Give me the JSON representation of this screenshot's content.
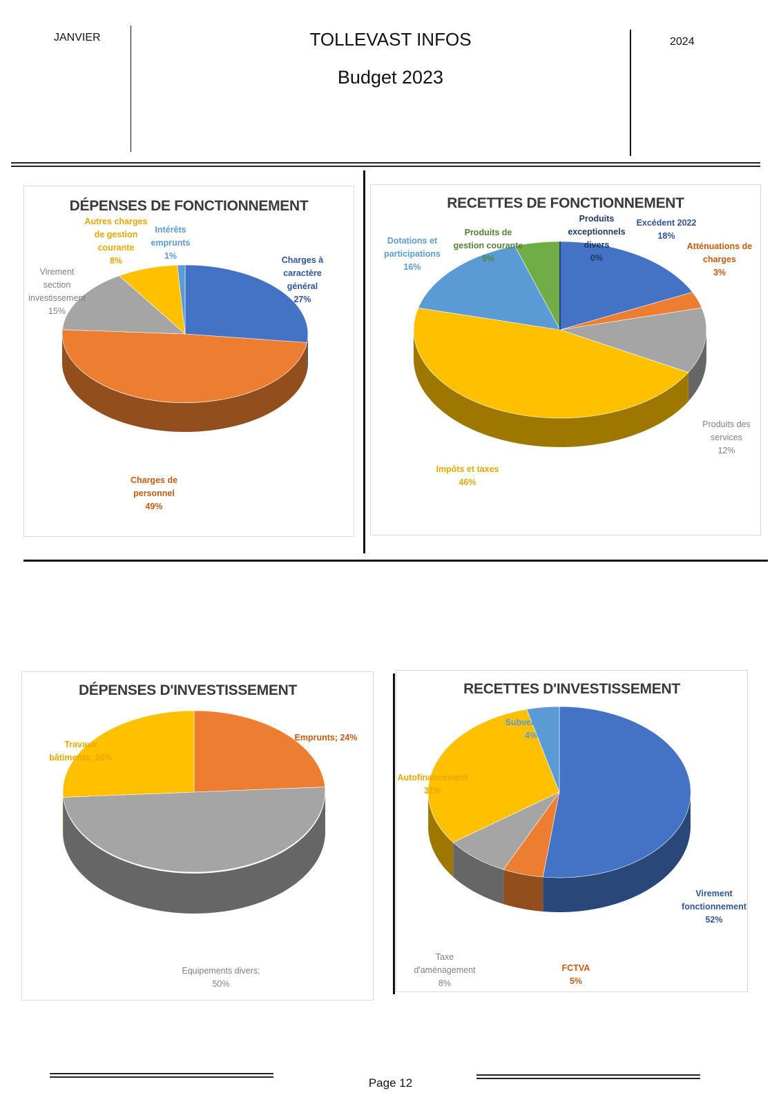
{
  "header": {
    "left": "JANVIER",
    "title": "TOLLEVAST INFOS",
    "subtitle": "Budget 2023",
    "right": "2024"
  },
  "footer": {
    "page": "Page 12"
  },
  "colors": {
    "blue": "#4472c4",
    "orange": "#ed7d31",
    "gray": "#a5a5a5",
    "yellow": "#ffc000",
    "lightblue": "#5b9bd5",
    "green": "#70ad47"
  },
  "chart_data": [
    {
      "type": "pie",
      "title": "DÉPENSES DE FONCTIONNEMENT",
      "slices": [
        {
          "name": "Charges à caractère général",
          "value": 27,
          "label": "27%",
          "color": "#4472c4"
        },
        {
          "name": "Charges de personnel",
          "value": 49,
          "label": "49%",
          "color": "#ed7d31"
        },
        {
          "name": "Virement section investissement",
          "value": 15,
          "label": "15%",
          "color": "#a5a5a5"
        },
        {
          "name": "Autres charges de gestion courante",
          "value": 8,
          "label": "8%",
          "color": "#ffc000"
        },
        {
          "name": "Intérêts emprunts",
          "value": 1,
          "label": "1%",
          "color": "#5b9bd5"
        }
      ]
    },
    {
      "type": "pie",
      "title": "RECETTES DE FONCTIONNEMENT",
      "slices": [
        {
          "name": "Excédent 2022",
          "value": 18,
          "label": "18%",
          "color": "#4472c4"
        },
        {
          "name": "Atténuations de charges",
          "value": 3,
          "label": "3%",
          "color": "#ed7d31"
        },
        {
          "name": "Produits des services",
          "value": 12,
          "label": "12%",
          "color": "#a5a5a5"
        },
        {
          "name": "Impôts et taxes",
          "value": 46,
          "label": "46%",
          "color": "#ffc000"
        },
        {
          "name": "Dotations et participations",
          "value": 16,
          "label": "16%",
          "color": "#5b9bd5"
        },
        {
          "name": "Produits de gestion courante",
          "value": 5,
          "label": "5%",
          "color": "#70ad47"
        },
        {
          "name": "Produits exceptionnels divers",
          "value": 0,
          "label": "0%",
          "color": "#264478"
        }
      ]
    },
    {
      "type": "pie",
      "title": "DÉPENSES D'INVESTISSEMENT",
      "slices": [
        {
          "name": "Emprunts",
          "value": 24,
          "label": "24%",
          "color": "#ed7d31"
        },
        {
          "name": "Equipements divers",
          "value": 50,
          "label": "50%",
          "color": "#a5a5a5"
        },
        {
          "name": "Travaux bâtiments",
          "value": 26,
          "label": "26%",
          "color": "#ffc000"
        }
      ]
    },
    {
      "type": "pie",
      "title": "RECETTES D'INVESTISSEMENT",
      "slices": [
        {
          "name": "Virement fonctionnement",
          "value": 52,
          "label": "52%",
          "color": "#4472c4"
        },
        {
          "name": "FCTVA",
          "value": 5,
          "label": "5%",
          "color": "#ed7d31"
        },
        {
          "name": "Taxe d'aménagement",
          "value": 8,
          "label": "8%",
          "color": "#a5a5a5"
        },
        {
          "name": "Autofinancement",
          "value": 31,
          "label": "31%",
          "color": "#ffc000"
        },
        {
          "name": "Subventions",
          "value": 4,
          "label": "4%",
          "color": "#5b9bd5"
        }
      ]
    }
  ],
  "labels": {
    "c1": {
      "charges_generales": [
        "Charges à",
        "caractère",
        "général",
        "27%"
      ],
      "personnel": [
        "Charges de",
        "personnel",
        "49%"
      ],
      "virement": [
        "Virement",
        "section",
        "investissement",
        "15%"
      ],
      "autres": [
        "Autres charges",
        "de gestion",
        "courante",
        "8%"
      ],
      "interets": [
        "Intérêts",
        "emprunts",
        "1%"
      ]
    },
    "c2": {
      "excedent": [
        "Excédent 2022",
        "18%"
      ],
      "attenuations": [
        "Atténuations de",
        "charges",
        "3%"
      ],
      "services": [
        "Produits des",
        "services",
        "12%"
      ],
      "impots": [
        "Impôts et taxes",
        "46%"
      ],
      "dotations": [
        "Dotations et",
        "participations",
        "16%"
      ],
      "gestion": [
        "Produits de",
        "gestion courante",
        "5%"
      ],
      "exceptionnels": [
        "Produits",
        "exceptionnels",
        "divers",
        "0%"
      ]
    },
    "c3": {
      "emprunts": [
        "Emprunts; 24%"
      ],
      "equipements": [
        "Equipements divers;",
        "50%"
      ],
      "travaux": [
        "Travaux",
        "bâtiments; 26%"
      ]
    },
    "c4": {
      "virement": [
        "Virement",
        "fonctionnement",
        "52%"
      ],
      "fctva": [
        "FCTVA",
        "5%"
      ],
      "taxe": [
        "Taxe",
        "d'aménagement",
        "8%"
      ],
      "autofinancement": [
        "Autofinancement",
        "31%"
      ],
      "subventions": [
        "Subventions",
        "4%"
      ]
    }
  }
}
